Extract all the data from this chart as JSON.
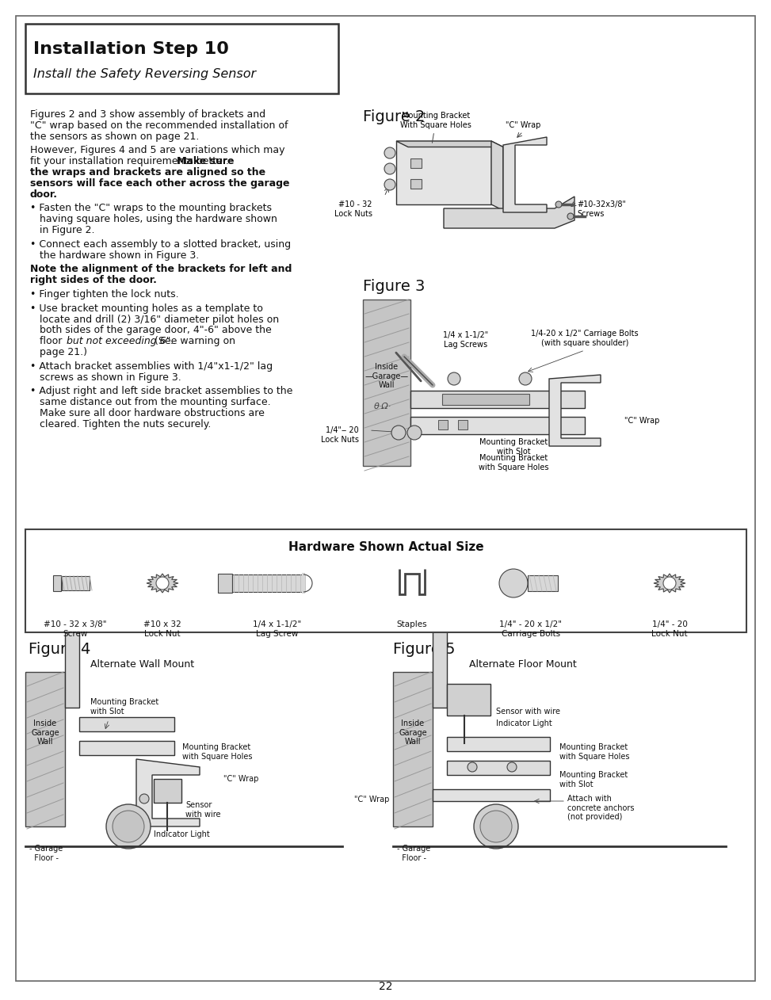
{
  "title1": "Installation Step 10",
  "title2": "Install the Safety Reversing Sensor",
  "para1": "Figures 2 and 3 show assembly of brackets and\n\"C\" wrap based on the recommended installation of\nthe sensors as shown on page 21.",
  "para2_normal": "However, Figures 4 and 5 are variations which may\nfit your installation requirements better. ",
  "para2_bold": "Make sure\nthe wraps and brackets are aligned so the\nsensors will face each other across the garage\ndoor.",
  "bullet1": "• Fasten the \"C\" wraps to the mounting brackets\n   having square holes, using the hardware shown\n   in Figure 2.",
  "bullet2": "• Connect each assembly to a slotted bracket, using\n   the hardware shown in Figure 3.",
  "bold_note": "Note the alignment of the brackets for left and\nright sides of the door.",
  "bullet3": "• Finger tighten the lock nuts.",
  "bullet4": "• Use bracket mounting holes as a template to\n   locate and drill (2) 3/16\" diameter pilot holes on\n   both sides of the garage door, 4\"-6\" above the\n   floor but not exceeding 6\". (See warning on\n   page 21.)",
  "bullet5": "• Attach bracket assemblies with 1/4\"x1-1/2\" lag\n   screws as shown in Figure 3.",
  "bullet6": "• Adjust right and left side bracket assemblies to the\n   same distance out from the mounting surface.\n   Make sure all door hardware obstructions are\n   cleared. Tighten the nuts securely.",
  "hw_title": "Hardware Shown Actual Size",
  "hw_labels": [
    "#10 - 32 x 3/8\"\nScrew",
    "#10 x 32\nLock Nut",
    "1/4 x 1-1/2\"\nLag Screw",
    "Staples",
    "1/4\" - 20 x 1/2\"\nCarriage Bolts",
    "1/4\" - 20\nLock Nut"
  ],
  "fig2": "Figure 2",
  "fig3": "Figure 3",
  "fig4": "Figure 4",
  "fig5": "Figure 5",
  "fig4_sub": "Alternate Wall Mount",
  "fig5_sub": "Alternate Floor Mount",
  "page_num": "22",
  "bg_color": "#f8f8f5",
  "text_color": "#222222",
  "line_color": "#555555"
}
